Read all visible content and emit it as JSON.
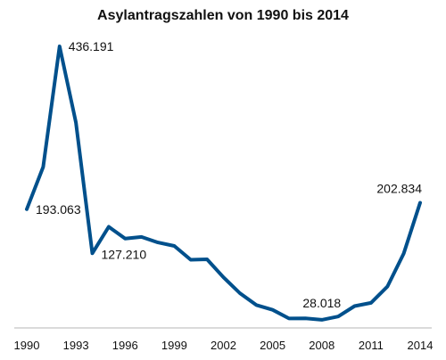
{
  "chart_data": {
    "type": "line",
    "title": "Asylantragszahlen von 1990 bis 2014",
    "xlabel": "",
    "ylabel": "",
    "x": [
      1990,
      1991,
      1992,
      1993,
      1994,
      1995,
      1996,
      1997,
      1998,
      1999,
      2000,
      2001,
      2002,
      2003,
      2004,
      2005,
      2006,
      2007,
      2008,
      2009,
      2010,
      2011,
      2012,
      2013,
      2014
    ],
    "series": [
      {
        "color": "#00508c",
        "values": [
          193063,
          256112,
          436191,
          322599,
          127210,
          166951,
          149193,
          151700,
          143429,
          138319,
          117648,
          118306,
          91471,
          67848,
          50152,
          42908,
          30100,
          30303,
          28018,
          33033,
          48589,
          53347,
          77651,
          127023,
          202834
        ]
      }
    ],
    "xticks": [
      "1990",
      "1993",
      "1996",
      "1999",
      "2002",
      "2005",
      "2008",
      "2011",
      "2014"
    ],
    "xlim": [
      1990,
      2014
    ],
    "ylim": [
      0,
      450000
    ],
    "grid": false,
    "legend": "none",
    "annotations": [
      {
        "x": 1990,
        "value": 193063,
        "text": "193.063"
      },
      {
        "x": 1992,
        "value": 436191,
        "text": "436.191"
      },
      {
        "x": 1994,
        "value": 127210,
        "text": "127.210"
      },
      {
        "x": 2008,
        "value": 28018,
        "text": "28.018"
      },
      {
        "x": 2014,
        "value": 202834,
        "text": "202.834"
      }
    ],
    "colors": {
      "line": "#00508c",
      "axis": "#b4b4b4",
      "text": "#111111"
    }
  }
}
